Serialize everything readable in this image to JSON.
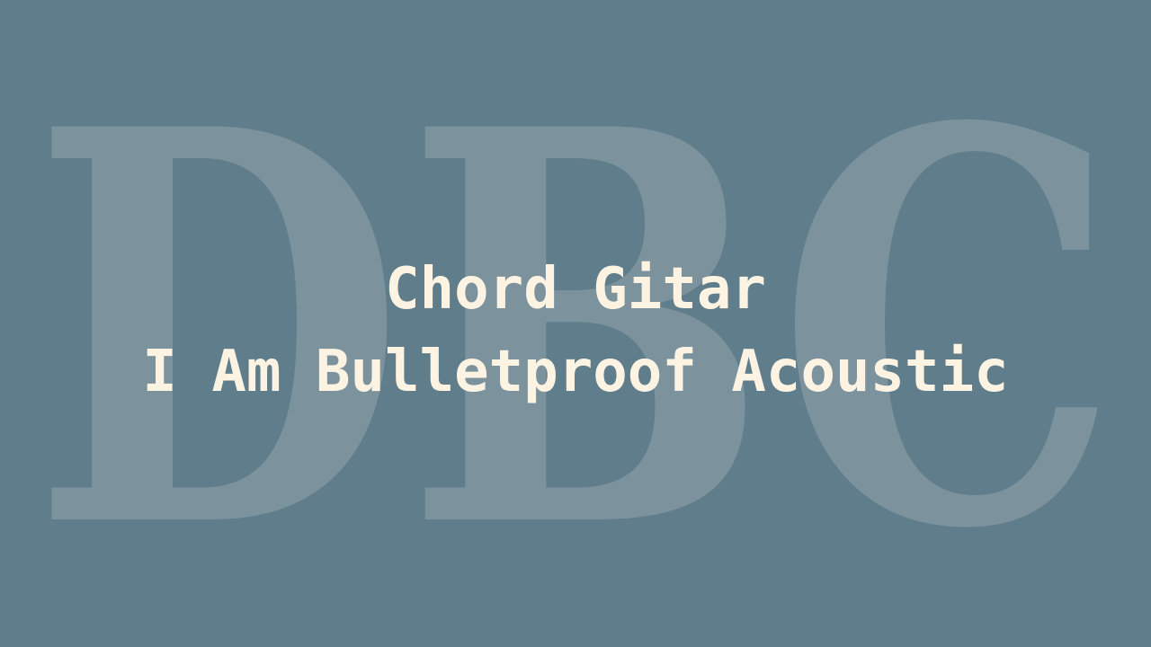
{
  "background_color": "#607d8b",
  "text_color": "#fdf3e3",
  "watermark": {
    "text": "DBC",
    "color": "#7c939e"
  },
  "title": {
    "line1": "Chord Gitar",
    "line2": "I Am Bulletproof Acoustic"
  }
}
